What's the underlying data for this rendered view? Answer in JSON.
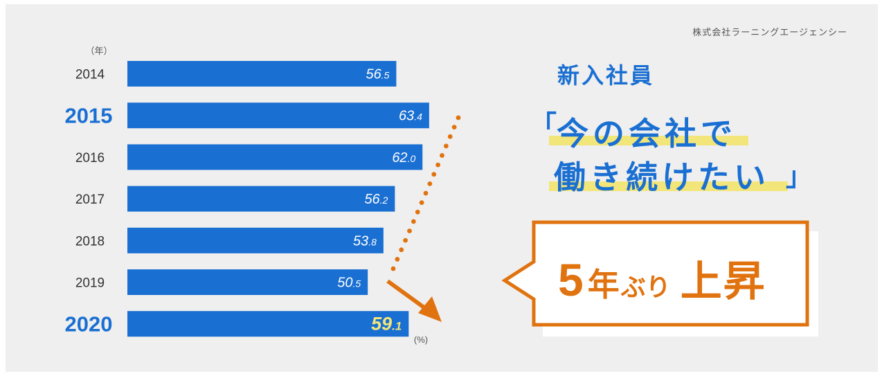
{
  "source": "株式会社ラーニングエージェンシー",
  "headline": "新入社員",
  "quote": {
    "open": "「",
    "line1": "今の会社で",
    "line2": "働き続けたい",
    "close": "」"
  },
  "callout": {
    "num": "5",
    "mid": "年",
    "small": "ぶり",
    "end": "上昇"
  },
  "colors": {
    "bar": "#1a6fd2",
    "accent_value": "#f2e67a",
    "arrow": "#e0730f",
    "text": "#333333"
  },
  "chart_data": {
    "type": "bar",
    "orientation": "horizontal",
    "categories": [
      "2014",
      "2015",
      "2016",
      "2017",
      "2018",
      "2019",
      "2020"
    ],
    "values": [
      56.5,
      63.4,
      62.0,
      56.2,
      53.8,
      50.5,
      59.1
    ],
    "value_labels": [
      "56.5",
      "63.4",
      "62.0",
      "56.2",
      "53.8",
      "50.5",
      "59.1"
    ],
    "emphasized_categories": [
      "2015",
      "2020"
    ],
    "highlighted_value_category": "2020",
    "y_unit_label": "（年）",
    "x_unit_label": "(%)",
    "trend_annotation": "dotted arrow from 2015 bar end down to 2020 bar end"
  }
}
